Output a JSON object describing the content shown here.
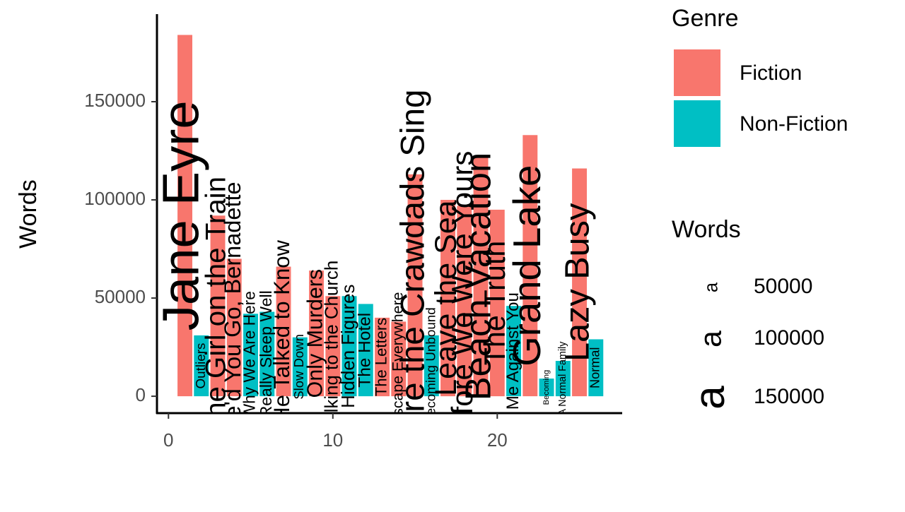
{
  "chart_data": {
    "type": "bar",
    "y_label": "Words",
    "x": [
      1,
      2,
      3,
      4,
      5,
      6,
      7,
      8,
      9,
      10,
      11,
      12,
      13,
      14,
      15,
      16,
      17,
      18,
      19,
      20,
      21,
      22,
      23,
      24,
      25,
      26
    ],
    "labels": [
      "Jane Eyre",
      "Outliers",
      "The Girl on the Train",
      "Where'd You Go, Bernadette",
      "Why We Are Here",
      "Really Sleep Well",
      "He Talked to Know",
      "Slow Down",
      "Only Murders",
      "Talking to the Church",
      "Hidden Figures",
      "The Hotel",
      "The Letters",
      "Escape Everywhere",
      "Where the Crawdads Sing",
      "Becoming Unbound",
      "Leave the Sea",
      "Before We Were Yours",
      "Beach Vacation",
      "The Truth",
      "Me Against You",
      "Grand Lake",
      "Becoming",
      "A Normal Family",
      "Lazy Busy",
      "Normal"
    ],
    "genres": [
      "Fiction",
      "Non-Fiction",
      "Fiction",
      "Fiction",
      "Non-Fiction",
      "Non-Fiction",
      "Fiction",
      "Non-Fiction",
      "Fiction",
      "Fiction",
      "Non-Fiction",
      "Non-Fiction",
      "Fiction",
      "Fiction",
      "Fiction",
      "Non-Fiction",
      "Fiction",
      "Fiction",
      "Fiction",
      "Fiction",
      "Non-Fiction",
      "Fiction",
      "Non-Fiction",
      "Non-Fiction",
      "Fiction",
      "Non-Fiction"
    ],
    "values": [
      184000,
      31000,
      92000,
      70000,
      42000,
      43000,
      66000,
      30000,
      64000,
      51000,
      51000,
      47000,
      40000,
      38000,
      113000,
      31000,
      100000,
      97000,
      122000,
      95000,
      46000,
      133000,
      9000,
      18000,
      116000,
      29000
    ],
    "genre_title": "Genre",
    "series": [
      {
        "name": "Fiction",
        "color": "#F8766D"
      },
      {
        "name": "Non-Fiction",
        "color": "#00BFC4"
      }
    ],
    "size_title": "Words",
    "size_glyph": "a",
    "size_breaks": [
      50000,
      100000,
      150000
    ],
    "xlim": [
      -0.7,
      27.6
    ],
    "xticks": [
      0,
      10,
      20
    ],
    "ylim": [
      -8600,
      194600
    ],
    "yticks": [
      0,
      50000,
      100000,
      150000
    ]
  }
}
